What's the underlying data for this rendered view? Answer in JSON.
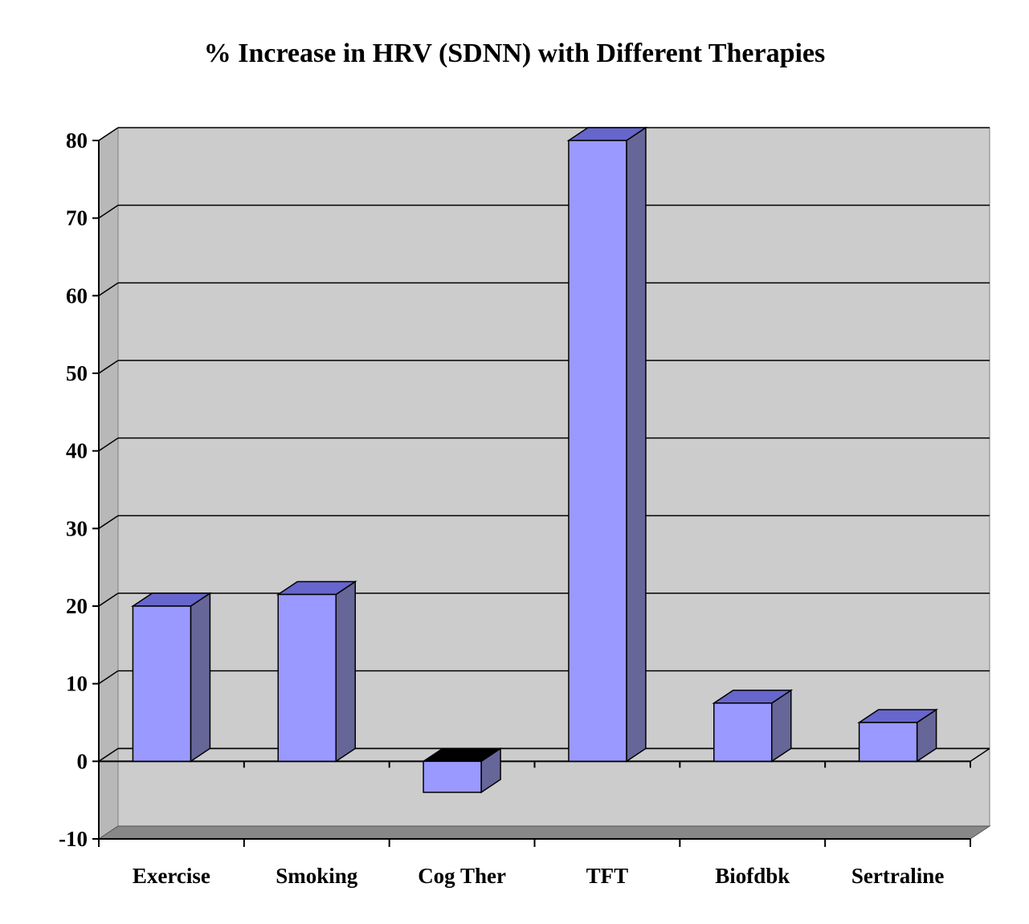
{
  "chart_data": {
    "type": "bar",
    "style": "3d",
    "title": "% Increase in HRV (SDNN) with Different Therapies",
    "xlabel": "",
    "ylabel": "",
    "categories": [
      "Exercise",
      "Smoking",
      "Cog Ther",
      "TFT",
      "Biofdbk",
      "Sertraline"
    ],
    "values": [
      20,
      21.5,
      -4,
      80,
      7.5,
      5
    ],
    "ylim": [
      -10,
      80
    ],
    "yticks": [
      -10,
      0,
      10,
      20,
      30,
      40,
      50,
      60,
      70,
      80
    ],
    "grid": true,
    "legend": "none",
    "colors": {
      "bar_front": "#9999ff",
      "bar_side": "#666699",
      "bar_top": "#6666cc",
      "bar_top_negative": "#000000",
      "wall": "#cccccc",
      "wall_side": "#b8b8b8",
      "floor": "#888888",
      "gridline": "#000000"
    }
  }
}
